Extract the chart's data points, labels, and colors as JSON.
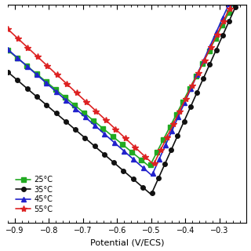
{
  "title": "",
  "xlabel": "Potential (V/ECS)",
  "xlim": [
    -0.92,
    -0.22
  ],
  "ylim": [
    1e-07,
    0.1
  ],
  "x_ticks": [
    -0.9,
    -0.8,
    -0.7,
    -0.6,
    -0.5,
    -0.4,
    -0.3
  ],
  "series": [
    {
      "label": "25°C",
      "color": "#22aa22",
      "marker": "s",
      "Ecorr": -0.505,
      "icorr": 3.5e-06,
      "ba": 0.055,
      "bc": 0.13
    },
    {
      "label": "35°C",
      "color": "#111111",
      "marker": "o",
      "Ecorr": -0.5,
      "icorr": 6e-07,
      "ba": 0.048,
      "bc": 0.125
    },
    {
      "label": "45°C",
      "color": "#2222cc",
      "marker": "^",
      "Ecorr": -0.498,
      "icorr": 2e-06,
      "ba": 0.048,
      "bc": 0.122
    },
    {
      "label": "55°C",
      "color": "#dd2222",
      "marker": "*",
      "Ecorr": -0.493,
      "icorr": 4e-06,
      "ba": 0.052,
      "bc": 0.115
    }
  ],
  "background_color": "#ffffff",
  "marker_size_sq": 4,
  "marker_size_circle": 4,
  "marker_size_tri": 5,
  "marker_size_star": 6,
  "linewidth": 1.2,
  "marker_every": 8
}
